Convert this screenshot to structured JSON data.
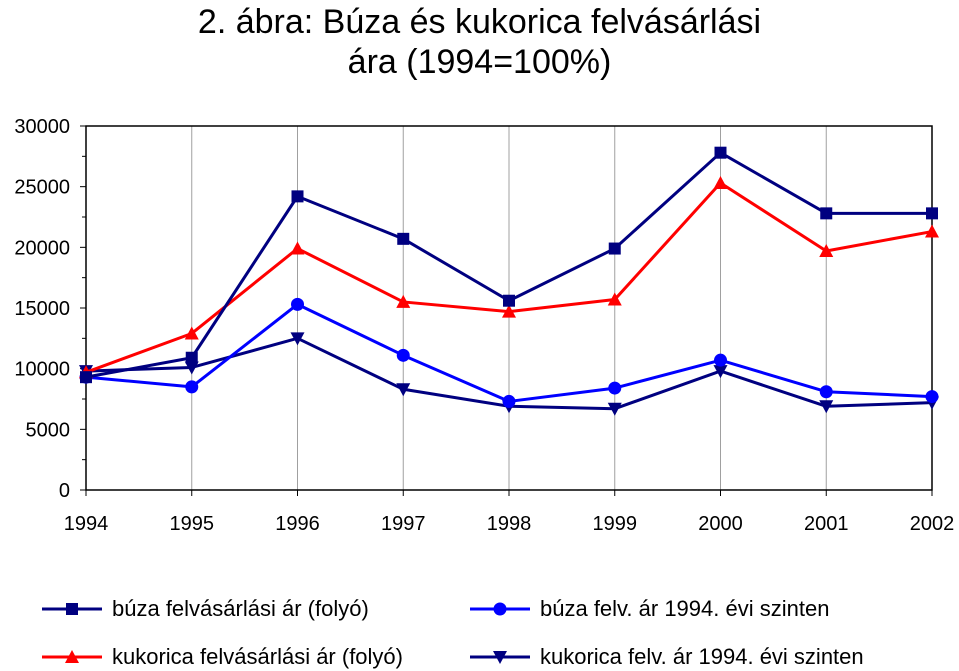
{
  "title_line1": "2. ábra: Búza és kukorica felvásárlási",
  "title_line2": "ára (1994=100%)",
  "chart_data": {
    "type": "line",
    "title": "2. ábra: Búza és kukorica felvásárlási ára (1994=100%)",
    "x": [
      "1994",
      "1995",
      "1996",
      "1997",
      "1998",
      "1999",
      "2000",
      "2001",
      "2002"
    ],
    "ylim": [
      0,
      30000
    ],
    "yticks": [
      "0",
      "5000",
      "10000",
      "15000",
      "20000",
      "25000",
      "30000"
    ],
    "grid": true,
    "legend_position": "bottom",
    "series": [
      {
        "name": "búza felvásárlási ár (folyó)",
        "color": "#000080",
        "marker": "square",
        "values": [
          9300,
          10900,
          24200,
          20700,
          15600,
          19900,
          27800,
          22800,
          22800
        ]
      },
      {
        "name": "kukorica felvásárlási ár (folyó)",
        "color": "#ff0000",
        "marker": "triangle-up",
        "values": [
          9700,
          12900,
          19900,
          15500,
          14700,
          15700,
          25300,
          19700,
          21300
        ]
      },
      {
        "name": "búza felv. ár 1994. évi szinten",
        "color": "#0000ff",
        "marker": "circle",
        "values": [
          9300,
          8500,
          15300,
          11100,
          7300,
          8400,
          10700,
          8100,
          7700
        ]
      },
      {
        "name": "kukorica felv. ár 1994. évi szinten",
        "color": "#000080",
        "marker": "triangle-down",
        "values": [
          9800,
          10100,
          12500,
          8300,
          6900,
          6700,
          9800,
          6900,
          7200
        ]
      }
    ]
  }
}
